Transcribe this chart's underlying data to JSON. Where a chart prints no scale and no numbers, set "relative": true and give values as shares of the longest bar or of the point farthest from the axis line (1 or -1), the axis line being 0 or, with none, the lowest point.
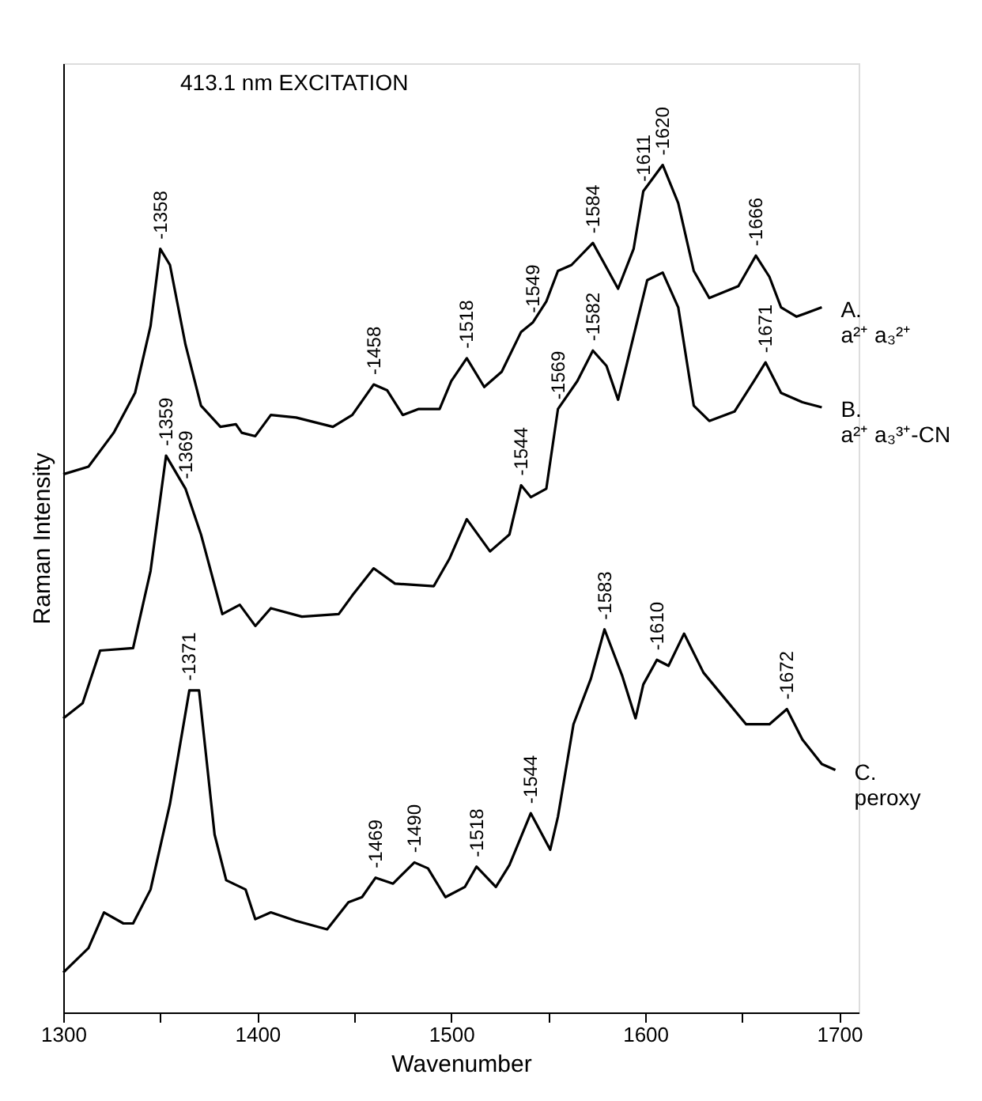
{
  "chart_data": {
    "type": "line",
    "title": "413.1 nm EXCITATION",
    "xlabel": "Wavenumber",
    "ylabel": "Raman Intensity",
    "relative": true,
    "grid": false,
    "legend": false,
    "marker": "none",
    "line_style": "solid",
    "xlim": [
      1300,
      1710
    ],
    "xticks": [
      1300,
      {
        "value": 1350,
        "label": null
      },
      1400,
      {
        "value": 1450,
        "label": null
      },
      1500,
      {
        "value": 1550,
        "label": null
      },
      1600,
      {
        "value": 1650,
        "label": null
      },
      1700
    ],
    "series": [
      {
        "name": "A. a²⁺ a₃²⁺",
        "color": "#000000",
        "x": [
          1300,
          1313,
          1326,
          1337,
          1345,
          1350,
          1355,
          1363,
          1371,
          1381,
          1389,
          1392,
          1399,
          1407,
          1420,
          1439,
          1449,
          1460,
          1467,
          1475,
          1483,
          1494,
          1500,
          1508,
          1517,
          1526,
          1536,
          1542,
          1549,
          1555,
          1562,
          1573,
          1580,
          1586,
          1594,
          1599,
          1609,
          1617,
          1625,
          1633,
          1648,
          1657,
          1664,
          1670,
          1678,
          1691
        ],
        "values": [
          0.635,
          0.644,
          0.684,
          0.731,
          0.81,
          0.901,
          0.882,
          0.788,
          0.716,
          0.691,
          0.694,
          0.684,
          0.68,
          0.705,
          0.702,
          0.691,
          0.705,
          0.741,
          0.734,
          0.705,
          0.712,
          0.712,
          0.745,
          0.772,
          0.738,
          0.756,
          0.803,
          0.814,
          0.839,
          0.875,
          0.882,
          0.908,
          0.879,
          0.854,
          0.901,
          0.969,
          1.0,
          0.955,
          0.875,
          0.843,
          0.857,
          0.893,
          0.868,
          0.832,
          0.821,
          0.832
        ]
      },
      {
        "name": "B. a²⁺ a₃³⁺-CN",
        "color": "#000000",
        "x": [
          1300,
          1310,
          1319,
          1336,
          1345,
          1353,
          1363,
          1371,
          1382,
          1391,
          1399,
          1407,
          1423,
          1442,
          1449,
          1460,
          1471,
          1491,
          1499,
          1508,
          1520,
          1530,
          1536,
          1541,
          1549,
          1555,
          1565,
          1573,
          1580,
          1586,
          1596,
          1601,
          1609,
          1617,
          1625,
          1633,
          1646,
          1656,
          1662,
          1670,
          1681,
          1691
        ],
        "values": [
          0.347,
          0.365,
          0.427,
          0.43,
          0.521,
          0.657,
          0.618,
          0.564,
          0.47,
          0.481,
          0.456,
          0.477,
          0.467,
          0.47,
          0.492,
          0.524,
          0.506,
          0.503,
          0.535,
          0.582,
          0.544,
          0.564,
          0.622,
          0.608,
          0.618,
          0.712,
          0.745,
          0.781,
          0.763,
          0.723,
          0.817,
          0.864,
          0.873,
          0.832,
          0.716,
          0.698,
          0.709,
          0.745,
          0.767,
          0.731,
          0.72,
          0.714
        ]
      },
      {
        "name": "C. peroxy",
        "color": "#000000",
        "x": [
          1300,
          1313,
          1321,
          1331,
          1336,
          1345,
          1355,
          1365,
          1370,
          1378,
          1384,
          1394,
          1399,
          1407,
          1420,
          1436,
          1447,
          1454,
          1461,
          1470,
          1481,
          1488,
          1497,
          1507,
          1513,
          1523,
          1530,
          1541,
          1551,
          1555,
          1563,
          1572,
          1579,
          1588,
          1595,
          1599,
          1606,
          1612,
          1620,
          1630,
          1639,
          1652,
          1664,
          1673,
          1681,
          1691,
          1698
        ],
        "values": [
          0.047,
          0.076,
          0.118,
          0.105,
          0.105,
          0.145,
          0.246,
          0.38,
          0.38,
          0.21,
          0.156,
          0.145,
          0.11,
          0.118,
          0.108,
          0.098,
          0.13,
          0.136,
          0.159,
          0.152,
          0.177,
          0.17,
          0.136,
          0.148,
          0.172,
          0.148,
          0.174,
          0.235,
          0.192,
          0.231,
          0.34,
          0.394,
          0.452,
          0.398,
          0.347,
          0.387,
          0.416,
          0.409,
          0.447,
          0.401,
          0.376,
          0.34,
          0.34,
          0.358,
          0.322,
          0.293,
          0.286
        ]
      }
    ],
    "annotations": [
      {
        "text": "-1358",
        "x": 1350,
        "y": 0.901
      },
      {
        "text": "-1458",
        "x": 1460,
        "y": 0.741
      },
      {
        "text": "-1518",
        "x": 1508,
        "y": 0.772
      },
      {
        "text": "-1549",
        "x": 1542,
        "y": 0.814
      },
      {
        "text": "-1584",
        "x": 1573,
        "y": 0.908
      },
      {
        "text": "-1611",
        "x": 1599,
        "y": 0.969
      },
      {
        "text": "-1620",
        "x": 1609,
        "y": 1.0
      },
      {
        "text": "-1666",
        "x": 1657,
        "y": 0.893
      },
      {
        "text": "-1359",
        "x": 1353,
        "y": 0.657
      },
      {
        "text": "-1369",
        "x": 1363,
        "y": 0.618
      },
      {
        "text": "-1544",
        "x": 1536,
        "y": 0.622
      },
      {
        "text": "-1569",
        "x": 1555,
        "y": 0.712
      },
      {
        "text": "-1582",
        "x": 1573,
        "y": 0.781
      },
      {
        "text": "-1671",
        "x": 1662,
        "y": 0.767
      },
      {
        "text": "-1371",
        "x": 1365,
        "y": 0.38
      },
      {
        "text": "-1469",
        "x": 1461,
        "y": 0.159
      },
      {
        "text": "-1490",
        "x": 1481,
        "y": 0.177
      },
      {
        "text": "-1518",
        "x": 1513,
        "y": 0.172
      },
      {
        "text": "-1544",
        "x": 1541,
        "y": 0.235
      },
      {
        "text": "-1583",
        "x": 1579,
        "y": 0.452
      },
      {
        "text": "-1610",
        "x": 1606,
        "y": 0.416
      },
      {
        "text": "-1672",
        "x": 1673,
        "y": 0.358
      }
    ]
  }
}
